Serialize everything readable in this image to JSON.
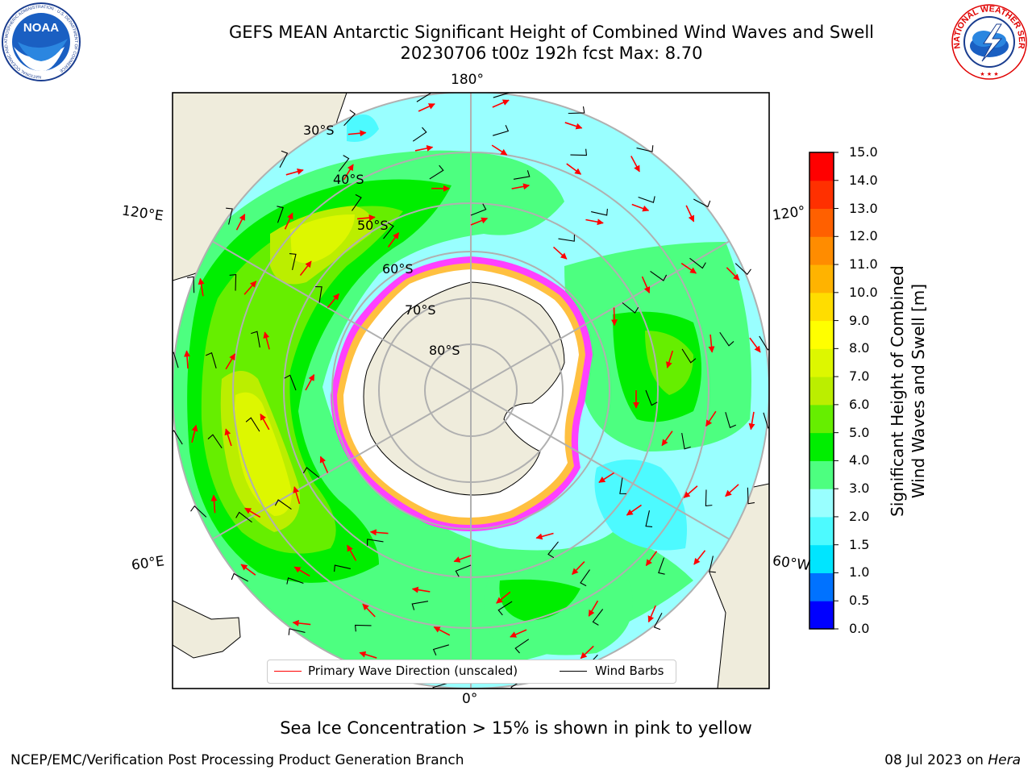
{
  "title": {
    "line1": "GEFS MEAN Antarctic Significant Height of Combined Wind Waves and Swell",
    "line2": "20230706 t00z 192h fcst   Max: 8.70"
  },
  "logos": {
    "noaa": {
      "text": "NOAA",
      "ring_text": "NATIONAL OCEANIC AND ATMOSPHERIC ADMINISTRATION · U.S. DEPARTMENT OF COMMERCE"
    },
    "nws": {
      "ring_text": "NATIONAL WEATHER SERVICE"
    }
  },
  "map": {
    "projection": "south polar stereographic",
    "longitude_labels": {
      "top": "180°",
      "bottom": "0°",
      "left_upper": "120°E",
      "left_lower": "60°E",
      "right_upper": "120°",
      "right_lower": "60°W"
    },
    "latitude_labels": [
      "30°S",
      "40°S",
      "50°S",
      "60°S",
      "70°S",
      "80°S"
    ],
    "legend": {
      "wave": "Primary Wave Direction (unscaled)",
      "wind": "Wind Barbs"
    },
    "colors": {
      "land": "#efecdc",
      "ice_fringe": [
        "#ff40ff",
        "#ff80c0",
        "#ffc040",
        "#ffff66"
      ],
      "arrow": "#ff0000",
      "barb": "#000000",
      "grid": "#b0b0b0"
    }
  },
  "colorbar": {
    "label_line1": "Significant Height of Combined",
    "label_line2": "Wind Waves and Swell [m]",
    "ticks": [
      "0.0",
      "0.5",
      "1.0",
      "1.5",
      "2.0",
      "3.0",
      "4.0",
      "5.0",
      "6.0",
      "7.0",
      "8.0",
      "9.0",
      "10.0",
      "11.0",
      "12.0",
      "13.0",
      "14.0",
      "15.0"
    ],
    "colors": [
      "#0000ff",
      "#0072ff",
      "#00e5ff",
      "#4dfaff",
      "#99ffff",
      "#4dff80",
      "#00ee00",
      "#66ee00",
      "#bbee00",
      "#ddf700",
      "#ffff00",
      "#ffdd00",
      "#ffb300",
      "#ff8c00",
      "#ff6000",
      "#ff3000",
      "#ff0000"
    ]
  },
  "note": "Sea Ice Concentration > 15% is shown in pink to yellow",
  "credits": {
    "left": "NCEP/EMC/Verification Post Processing Product Generation Branch",
    "right_date": "08 Jul 2023 on",
    "right_host": "Hera"
  }
}
